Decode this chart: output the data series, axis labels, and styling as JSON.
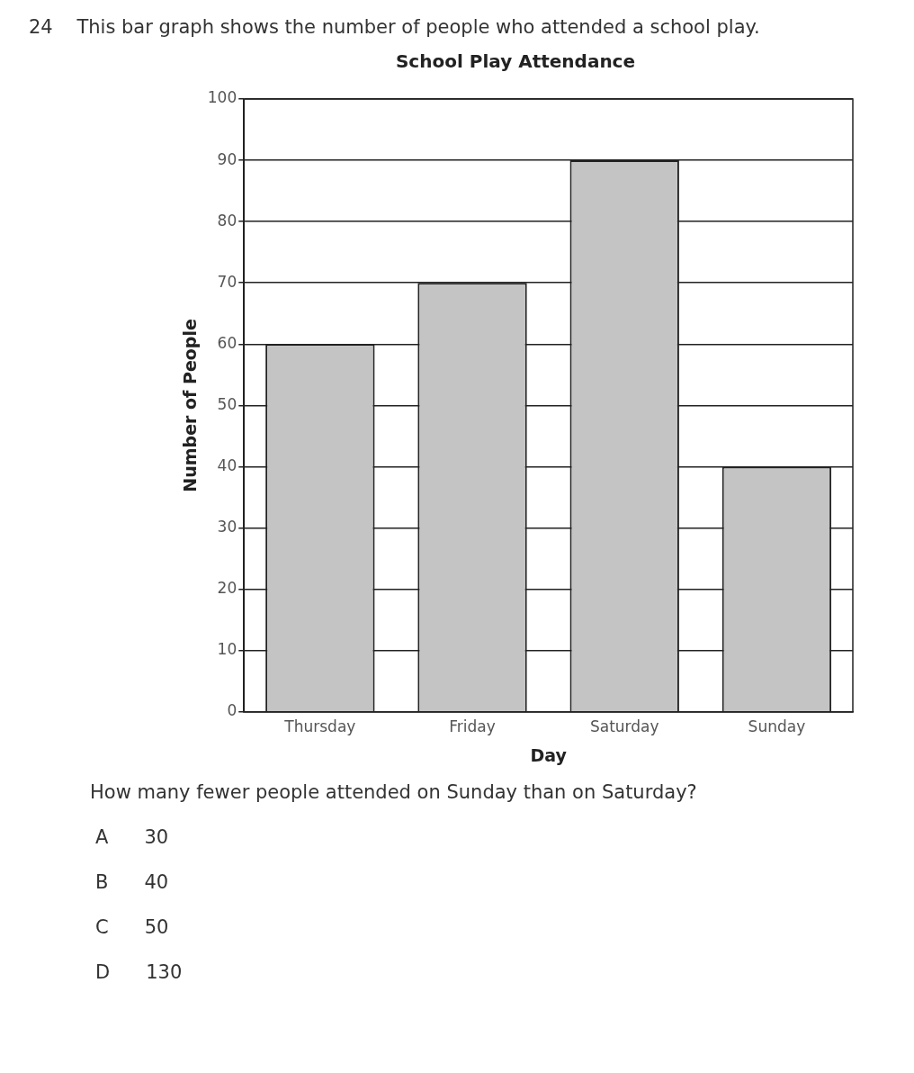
{
  "chart_data": {
    "type": "bar",
    "title": "School Play Attendance",
    "xlabel": "Day",
    "ylabel": "Number of People",
    "categories": [
      "Thursday",
      "Friday",
      "Saturday",
      "Sunday"
    ],
    "values": [
      60,
      70,
      90,
      40
    ],
    "color": "#c4c4c4",
    "ylim": [
      0,
      100
    ],
    "yticks": [
      0,
      10,
      20,
      30,
      40,
      50,
      60,
      70,
      80,
      90,
      100
    ],
    "grid": "y",
    "annotations": [
      "24    This bar graph shows the number of people who attended a school play.",
      "How many fewer people attended on Sunday than on Saturday?",
      "A      30",
      "B      40",
      "C      50",
      "D      130"
    ]
  }
}
